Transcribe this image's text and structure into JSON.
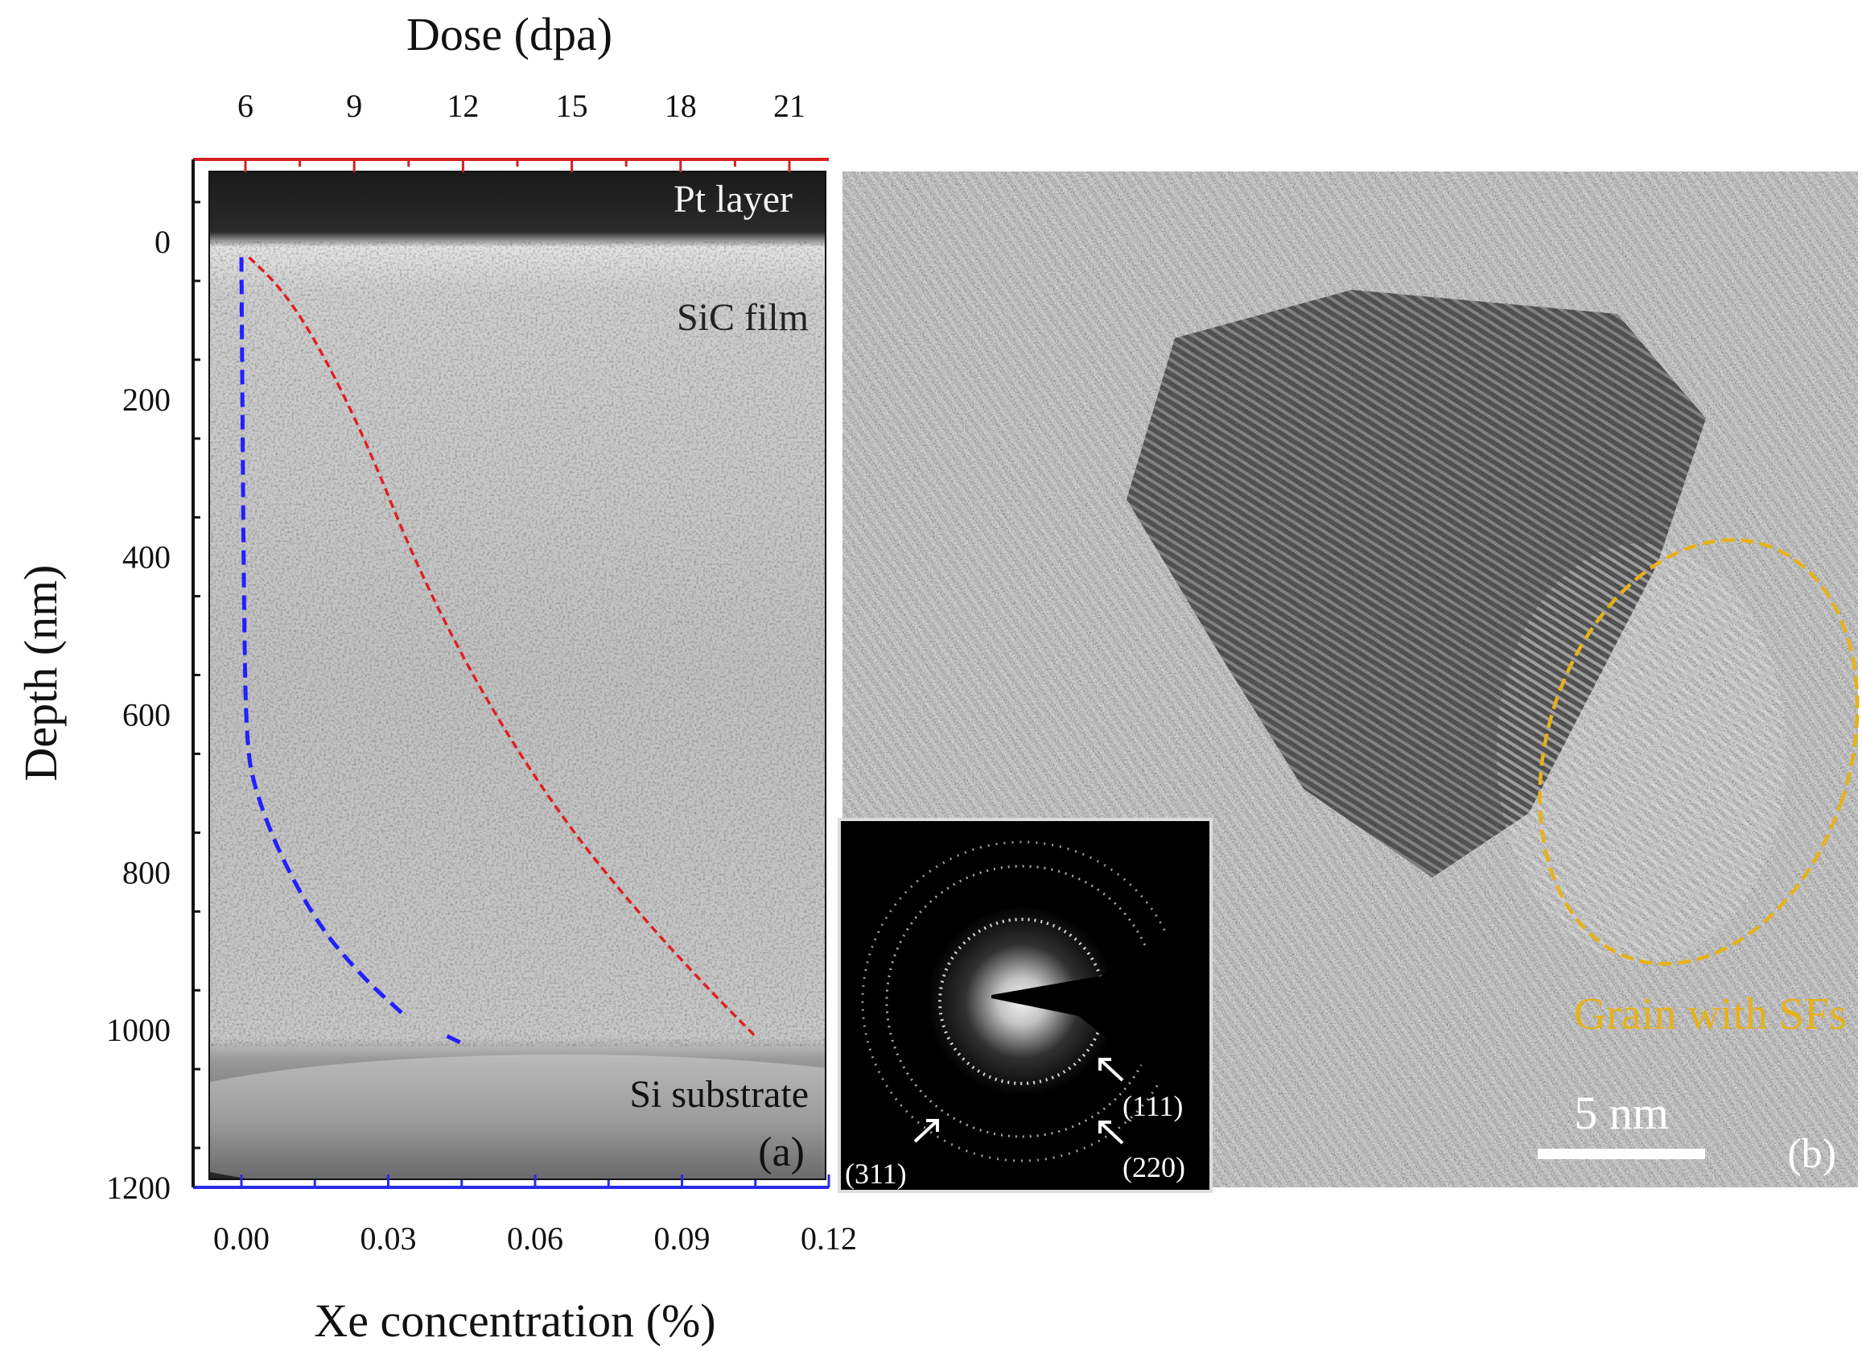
{
  "panel_a": {
    "top_axis": {
      "title": "Dose (dpa)",
      "ticks": [
        "6",
        "9",
        "12",
        "15",
        "18",
        "21"
      ],
      "color": "#d62020"
    },
    "left_axis": {
      "title": "Depth (nm)",
      "ticks": [
        "0",
        "200",
        "400",
        "600",
        "800",
        "1000",
        "1200"
      ]
    },
    "bottom_axis": {
      "title": "Xe concentration (%)",
      "ticks": [
        "0.00",
        "0.03",
        "0.06",
        "0.09",
        "0.12"
      ],
      "color": "#2a2ae8"
    },
    "labels": {
      "pt_layer": "Pt layer",
      "sic_film": "SiC film",
      "si_substrate": "Si substrate",
      "panel_tag": "(a)"
    },
    "curve_colors": {
      "dose": "#e02020",
      "xe": "#2020ff"
    }
  },
  "panel_b": {
    "grain_label": "Grain with SFs",
    "grain_color": "#e6b219",
    "scale_bar": "5 nm",
    "panel_tag": "(b)",
    "saed": {
      "ring_111": "(111)",
      "ring_220": "(220)",
      "ring_311": "(311)"
    }
  },
  "chart_data": [
    {
      "type": "line",
      "title": "",
      "xlabel": "Dose (dpa)",
      "ylabel": "Depth (nm)",
      "xlim": [
        4.9,
        22.1
      ],
      "ylim": [
        1200,
        -80
      ],
      "series": [
        {
          "x": [
            6.1,
            7.0,
            8.0,
            9.3,
            10.8,
            12.6,
            14.7,
            16.8,
            18.8,
            20.1
          ],
          "y": [
            20,
            60,
            130,
            250,
            420,
            580,
            730,
            850,
            950,
            1010
          ]
        }
      ]
    },
    {
      "type": "line",
      "title": "",
      "xlabel": "Xe concentration (%)",
      "ylabel": "Depth (nm)",
      "xlim": [
        -0.012,
        0.12
      ],
      "ylim": [
        1200,
        -80
      ],
      "series": [
        {
          "x": [
            0.0,
            0.0002,
            0.0005,
            0.001,
            0.003,
            0.008,
            0.016,
            0.025,
            0.033
          ],
          "y": [
            20,
            200,
            450,
            640,
            700,
            780,
            870,
            935,
            980
          ]
        },
        {
          "x": [
            0.042,
            0.046
          ],
          "y": [
            1008,
            1020
          ]
        }
      ]
    }
  ]
}
